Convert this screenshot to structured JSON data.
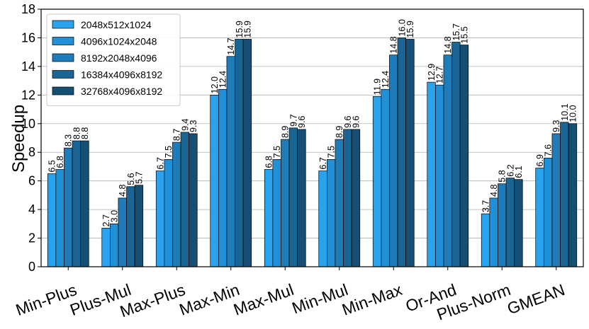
{
  "chart_data": {
    "type": "bar",
    "ylabel": "Speedup",
    "xlabel": "",
    "ylim": [
      0,
      18
    ],
    "yticks": [
      0,
      2,
      4,
      6,
      8,
      10,
      12,
      14,
      16,
      18
    ],
    "grid": "horizontal",
    "legend_position": "top-left",
    "categories": [
      "Min-Plus",
      "Plus-Mul",
      "Max-Plus",
      "Max-Min",
      "Max-Mul",
      "Min-Mul",
      "Min-Max",
      "Or-And",
      "Plus-Norm",
      "GMEAN"
    ],
    "series": [
      {
        "name": "2048x512x1024",
        "color": "#29a3ee",
        "values": [
          6.5,
          2.7,
          6.7,
          12.0,
          6.8,
          6.7,
          11.9,
          12.9,
          3.7,
          6.9
        ]
      },
      {
        "name": "4096x1024x2048",
        "color": "#2290d6",
        "values": [
          6.8,
          3.0,
          7.5,
          12.4,
          7.5,
          7.5,
          12.4,
          12.7,
          4.8,
          7.6
        ]
      },
      {
        "name": "8192x2048x4096",
        "color": "#1f7cb9",
        "values": [
          8.3,
          4.8,
          8.7,
          14.7,
          8.9,
          8.9,
          14.8,
          14.8,
          5.8,
          9.3
        ]
      },
      {
        "name": "16384x4096x8192",
        "color": "#1b6595",
        "values": [
          8.8,
          5.6,
          9.4,
          15.9,
          9.7,
          9.6,
          16.0,
          15.7,
          6.2,
          10.1
        ]
      },
      {
        "name": "32768x4096x8192",
        "color": "#154f73",
        "values": [
          8.8,
          5.7,
          9.3,
          15.9,
          9.6,
          9.6,
          15.9,
          15.5,
          6.1,
          10.0
        ]
      }
    ]
  }
}
